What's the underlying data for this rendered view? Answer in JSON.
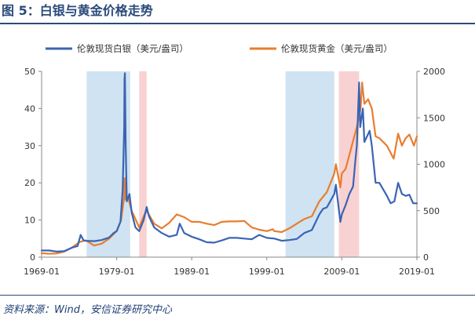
{
  "figure": {
    "title": "图 5：白银与黄金价格走势",
    "source": "资料来源：Wind，安信证券研究中心"
  },
  "colors": {
    "silver": "#3a64b4",
    "gold": "#e87d2e",
    "shade_blue": "#cfe3f2",
    "shade_red": "#f8d2d2",
    "axis": "#888888",
    "title": "#2a4a7a"
  },
  "chart_data": {
    "type": "line",
    "x_range": [
      1969.0,
      2019.0
    ],
    "x_ticks": [
      {
        "x": 1969,
        "label": "1969-01"
      },
      {
        "x": 1979,
        "label": "1979-01"
      },
      {
        "x": 1989,
        "label": "1989-01"
      },
      {
        "x": 1999,
        "label": "1999-01"
      },
      {
        "x": 2009,
        "label": "2009-01"
      },
      {
        "x": 2019,
        "label": "2019-01"
      }
    ],
    "y_left": {
      "range": [
        0,
        50
      ],
      "ticks": [
        0,
        10,
        20,
        30,
        40,
        50
      ]
    },
    "y_right": {
      "range": [
        0,
        2000
      ],
      "ticks": [
        0,
        500,
        1000,
        1500,
        2000
      ]
    },
    "grid": false,
    "legend_position": "top",
    "shaded_periods": [
      {
        "from": 1975.0,
        "to": 1980.8,
        "color": "shade_blue"
      },
      {
        "from": 1982.0,
        "to": 1983.0,
        "color": "shade_red"
      },
      {
        "from": 2001.5,
        "to": 2008.0,
        "color": "shade_blue"
      },
      {
        "from": 2008.6,
        "to": 2011.3,
        "color": "shade_red"
      }
    ],
    "series": [
      {
        "name": "伦敦现货白银（美元/盎司）",
        "axis": "left",
        "color": "silver",
        "points": [
          [
            1969.0,
            1.8
          ],
          [
            1970.0,
            1.8
          ],
          [
            1971.0,
            1.5
          ],
          [
            1972.0,
            1.6
          ],
          [
            1973.0,
            2.5
          ],
          [
            1973.8,
            3.0
          ],
          [
            1974.2,
            6.0
          ],
          [
            1974.6,
            4.5
          ],
          [
            1975.0,
            4.4
          ],
          [
            1976.0,
            4.3
          ],
          [
            1977.0,
            4.6
          ],
          [
            1978.0,
            5.3
          ],
          [
            1978.6,
            6.5
          ],
          [
            1979.0,
            7.0
          ],
          [
            1979.5,
            9.5
          ],
          [
            1979.8,
            18.0
          ],
          [
            1980.0,
            35.0
          ],
          [
            1980.05,
            48.0
          ],
          [
            1980.1,
            49.5
          ],
          [
            1980.2,
            30.0
          ],
          [
            1980.35,
            15.0
          ],
          [
            1980.7,
            17.0
          ],
          [
            1981.0,
            12.0
          ],
          [
            1981.5,
            8.0
          ],
          [
            1982.0,
            7.0
          ],
          [
            1982.6,
            10.0
          ],
          [
            1983.0,
            13.5
          ],
          [
            1983.3,
            11.0
          ],
          [
            1984.0,
            8.0
          ],
          [
            1985.0,
            6.5
          ],
          [
            1986.0,
            5.5
          ],
          [
            1987.0,
            6.0
          ],
          [
            1987.4,
            9.0
          ],
          [
            1988.0,
            6.5
          ],
          [
            1989.0,
            5.5
          ],
          [
            1990.0,
            4.8
          ],
          [
            1991.0,
            4.0
          ],
          [
            1992.0,
            3.9
          ],
          [
            1993.0,
            4.5
          ],
          [
            1994.0,
            5.2
          ],
          [
            1995.0,
            5.2
          ],
          [
            1996.0,
            5.0
          ],
          [
            1997.0,
            4.8
          ],
          [
            1998.0,
            6.0
          ],
          [
            1999.0,
            5.2
          ],
          [
            2000.0,
            5.0
          ],
          [
            2001.0,
            4.4
          ],
          [
            2002.0,
            4.6
          ],
          [
            2003.0,
            4.9
          ],
          [
            2004.0,
            6.5
          ],
          [
            2005.0,
            7.3
          ],
          [
            2006.0,
            11.5
          ],
          [
            2006.5,
            13.0
          ],
          [
            2007.0,
            13.4
          ],
          [
            2008.0,
            17.0
          ],
          [
            2008.2,
            19.5
          ],
          [
            2008.8,
            9.5
          ],
          [
            2009.0,
            11.5
          ],
          [
            2009.5,
            14.0
          ],
          [
            2010.0,
            17.0
          ],
          [
            2010.5,
            19.0
          ],
          [
            2010.8,
            26.0
          ],
          [
            2011.0,
            30.0
          ],
          [
            2011.3,
            47.0
          ],
          [
            2011.45,
            35.0
          ],
          [
            2011.8,
            40.0
          ],
          [
            2012.0,
            31.0
          ],
          [
            2012.7,
            34.0
          ],
          [
            2013.0,
            30.0
          ],
          [
            2013.5,
            20.0
          ],
          [
            2014.0,
            20.0
          ],
          [
            2015.0,
            16.5
          ],
          [
            2015.5,
            14.5
          ],
          [
            2016.0,
            15.0
          ],
          [
            2016.5,
            20.0
          ],
          [
            2017.0,
            17.0
          ],
          [
            2017.5,
            16.5
          ],
          [
            2018.0,
            16.8
          ],
          [
            2018.5,
            14.5
          ],
          [
            2019.0,
            14.5
          ]
        ]
      },
      {
        "name": "伦敦现货黄金（美元/盎司）",
        "axis": "right",
        "color": "gold",
        "points": [
          [
            1969.0,
            42
          ],
          [
            1970.0,
            36
          ],
          [
            1971.0,
            40
          ],
          [
            1972.0,
            60
          ],
          [
            1973.0,
            100
          ],
          [
            1974.0,
            160
          ],
          [
            1974.8,
            180
          ],
          [
            1975.0,
            175
          ],
          [
            1976.0,
            125
          ],
          [
            1977.0,
            145
          ],
          [
            1978.0,
            200
          ],
          [
            1979.0,
            280
          ],
          [
            1979.6,
            400
          ],
          [
            1980.0,
            650
          ],
          [
            1980.05,
            850
          ],
          [
            1980.15,
            620
          ],
          [
            1980.5,
            650
          ],
          [
            1981.0,
            500
          ],
          [
            1982.0,
            320
          ],
          [
            1982.6,
            440
          ],
          [
            1983.0,
            500
          ],
          [
            1984.0,
            360
          ],
          [
            1985.0,
            310
          ],
          [
            1986.0,
            370
          ],
          [
            1987.0,
            460
          ],
          [
            1988.0,
            430
          ],
          [
            1989.0,
            380
          ],
          [
            1990.0,
            380
          ],
          [
            1991.0,
            360
          ],
          [
            1992.0,
            345
          ],
          [
            1993.0,
            380
          ],
          [
            1994.0,
            385
          ],
          [
            1995.0,
            385
          ],
          [
            1996.0,
            390
          ],
          [
            1997.0,
            320
          ],
          [
            1998.0,
            295
          ],
          [
            1999.0,
            280
          ],
          [
            1999.8,
            300
          ],
          [
            2000.0,
            280
          ],
          [
            2001.0,
            270
          ],
          [
            2002.0,
            310
          ],
          [
            2003.0,
            360
          ],
          [
            2004.0,
            410
          ],
          [
            2005.0,
            440
          ],
          [
            2006.0,
            600
          ],
          [
            2007.0,
            700
          ],
          [
            2008.0,
            900
          ],
          [
            2008.2,
            1000
          ],
          [
            2008.8,
            750
          ],
          [
            2009.0,
            900
          ],
          [
            2009.5,
            950
          ],
          [
            2010.0,
            1100
          ],
          [
            2010.5,
            1250
          ],
          [
            2011.0,
            1400
          ],
          [
            2011.5,
            1600
          ],
          [
            2011.7,
            1880
          ],
          [
            2012.0,
            1650
          ],
          [
            2012.5,
            1700
          ],
          [
            2013.0,
            1600
          ],
          [
            2013.5,
            1300
          ],
          [
            2014.0,
            1280
          ],
          [
            2015.0,
            1200
          ],
          [
            2015.9,
            1060
          ],
          [
            2016.0,
            1100
          ],
          [
            2016.5,
            1330
          ],
          [
            2017.0,
            1200
          ],
          [
            2017.5,
            1280
          ],
          [
            2018.0,
            1320
          ],
          [
            2018.6,
            1200
          ],
          [
            2019.0,
            1300
          ]
        ]
      }
    ]
  }
}
